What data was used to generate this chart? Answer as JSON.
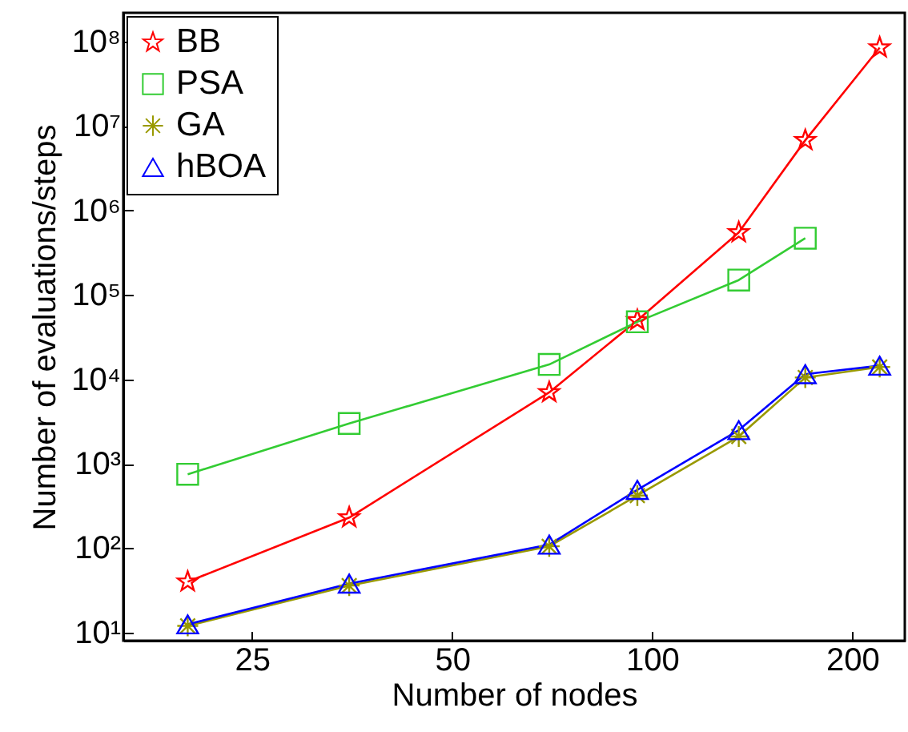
{
  "chart_data": {
    "type": "line",
    "xlabel": "Number of nodes",
    "ylabel": "Number of evaluations/steps",
    "log": "xy",
    "grid": false,
    "legend": "top left",
    "x": [
      20,
      35,
      70,
      95,
      135,
      170,
      220
    ],
    "xlim": [
      16,
      240
    ],
    "xticks": [
      25,
      50,
      100,
      200
    ],
    "ylim": [
      8,
      220000000
    ],
    "yticks": [
      {
        "value": 10,
        "label": "10¹"
      },
      {
        "value": 100,
        "label": "10²"
      },
      {
        "value": 1000,
        "label": "10³"
      },
      {
        "value": 10000,
        "label": "10⁴"
      },
      {
        "value": 100000,
        "label": "10⁵"
      },
      {
        "value": 1000000,
        "label": "10⁶"
      },
      {
        "value": 10000000,
        "label": "10⁷"
      },
      {
        "value": 100000000,
        "label": "10⁸"
      }
    ],
    "series": [
      {
        "name": "BB",
        "color": "#ff0000",
        "marker": "star",
        "values": [
          40,
          230,
          7000,
          50000,
          550000,
          6800000,
          85000000
        ]
      },
      {
        "name": "PSA",
        "color": "#33cc33",
        "marker": "square",
        "values": [
          750,
          3000,
          15000,
          48000,
          150000,
          470000,
          null
        ]
      },
      {
        "name": "GA",
        "color": "#999900",
        "marker": "cross",
        "values": [
          12,
          36,
          105,
          420,
          2100,
          10500,
          14000
        ]
      },
      {
        "name": "hBOA",
        "color": "#0000ff",
        "marker": "triangle",
        "values": [
          12.5,
          38,
          110,
          490,
          2500,
          11500,
          14500
        ]
      }
    ]
  }
}
